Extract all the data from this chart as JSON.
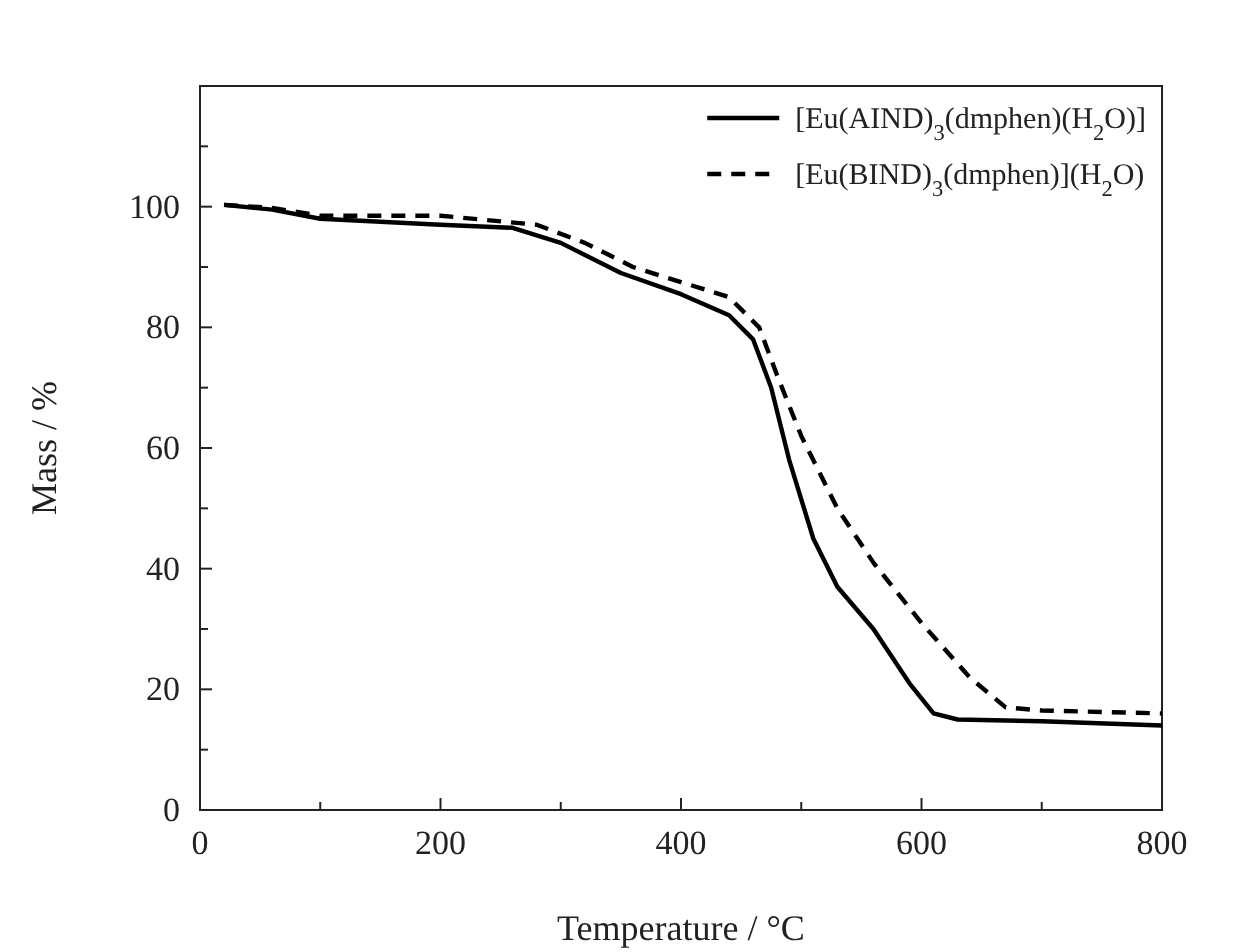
{
  "chart_data": {
    "type": "line",
    "xlabel": "Temperature / °C",
    "ylabel": "Mass / %",
    "xlim": [
      0,
      800
    ],
    "ylim": [
      0,
      120
    ],
    "xticks": [
      0,
      {
        "value": 100,
        "label": null
      },
      200,
      {
        "value": 300,
        "label": null
      },
      400,
      {
        "value": 500,
        "label": null
      },
      600,
      {
        "value": 700,
        "label": null
      },
      800
    ],
    "yticks": [
      0,
      {
        "value": 10,
        "label": null
      },
      20,
      {
        "value": 30,
        "label": null
      },
      40,
      {
        "value": 50,
        "label": null
      },
      60,
      {
        "value": 70,
        "label": null
      },
      80,
      {
        "value": 90,
        "label": null
      },
      100,
      {
        "value": 110,
        "label": null
      }
    ],
    "legend": "top right",
    "grid": false,
    "marker": "none",
    "series": [
      {
        "name": "[Eu(AIND)$_{3}$(dmphen)(H$_{2}$O)]",
        "color": "#000000",
        "line_style": "solid",
        "x": [
          20,
          60,
          100,
          150,
          200,
          260,
          300,
          350,
          400,
          440,
          460,
          475,
          490,
          510,
          530,
          560,
          590,
          610,
          630,
          700,
          800
        ],
        "values": [
          100.3,
          99.5,
          98,
          97.5,
          97,
          96.5,
          94,
          89,
          85.5,
          82,
          78,
          70,
          58,
          45,
          37,
          30,
          21,
          16,
          15,
          14.7,
          14
        ]
      },
      {
        "name": "[Eu(BIND)$_{3}$(dmphen)](H$_{2}$O)",
        "color": "#000000",
        "line_style": "dashed",
        "x": [
          20,
          60,
          100,
          150,
          200,
          280,
          320,
          360,
          400,
          440,
          465,
          480,
          500,
          530,
          560,
          600,
          640,
          670,
          700,
          800
        ],
        "values": [
          100.3,
          99.8,
          98.5,
          98.5,
          98.5,
          97,
          94,
          90,
          87.5,
          85,
          80,
          72,
          62,
          50,
          41,
          31,
          22,
          17,
          16.5,
          16
        ]
      }
    ]
  }
}
